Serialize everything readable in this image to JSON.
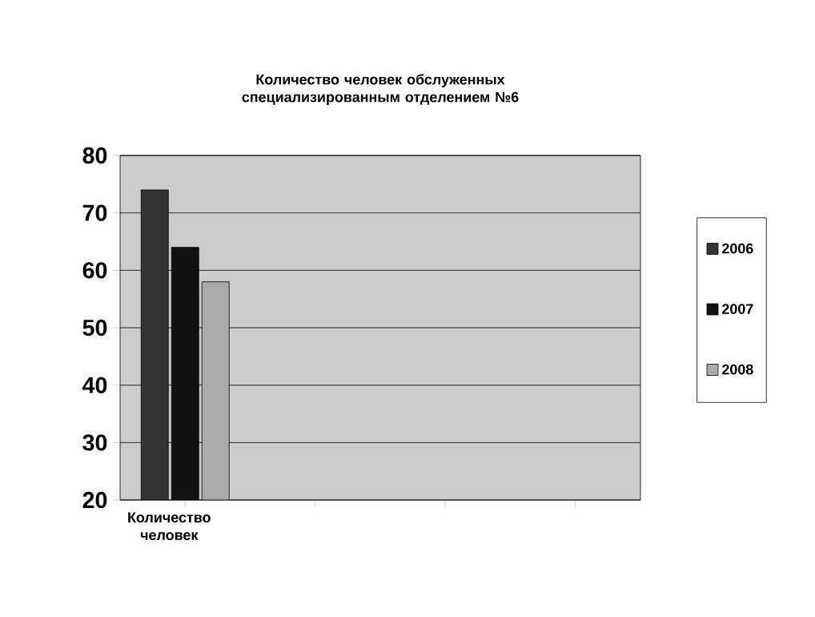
{
  "chart_data": {
    "type": "bar",
    "title": "Количество человек обслуженных специализированным отделением №6",
    "categories": [
      "Количество человек",
      null,
      null,
      null
    ],
    "series": [
      {
        "name": "2006",
        "color": "#333333",
        "values": [
          74,
          null,
          null,
          null
        ]
      },
      {
        "name": "2007",
        "color": "#111111",
        "values": [
          64,
          null,
          null,
          null
        ]
      },
      {
        "name": "2008",
        "color": "#aaaaaa",
        "values": [
          58,
          null,
          null,
          null
        ]
      }
    ],
    "ylim": [
      20,
      80
    ],
    "yticks": [
      20,
      30,
      40,
      50,
      60,
      70,
      80
    ],
    "grid": "y",
    "legend": "right"
  }
}
